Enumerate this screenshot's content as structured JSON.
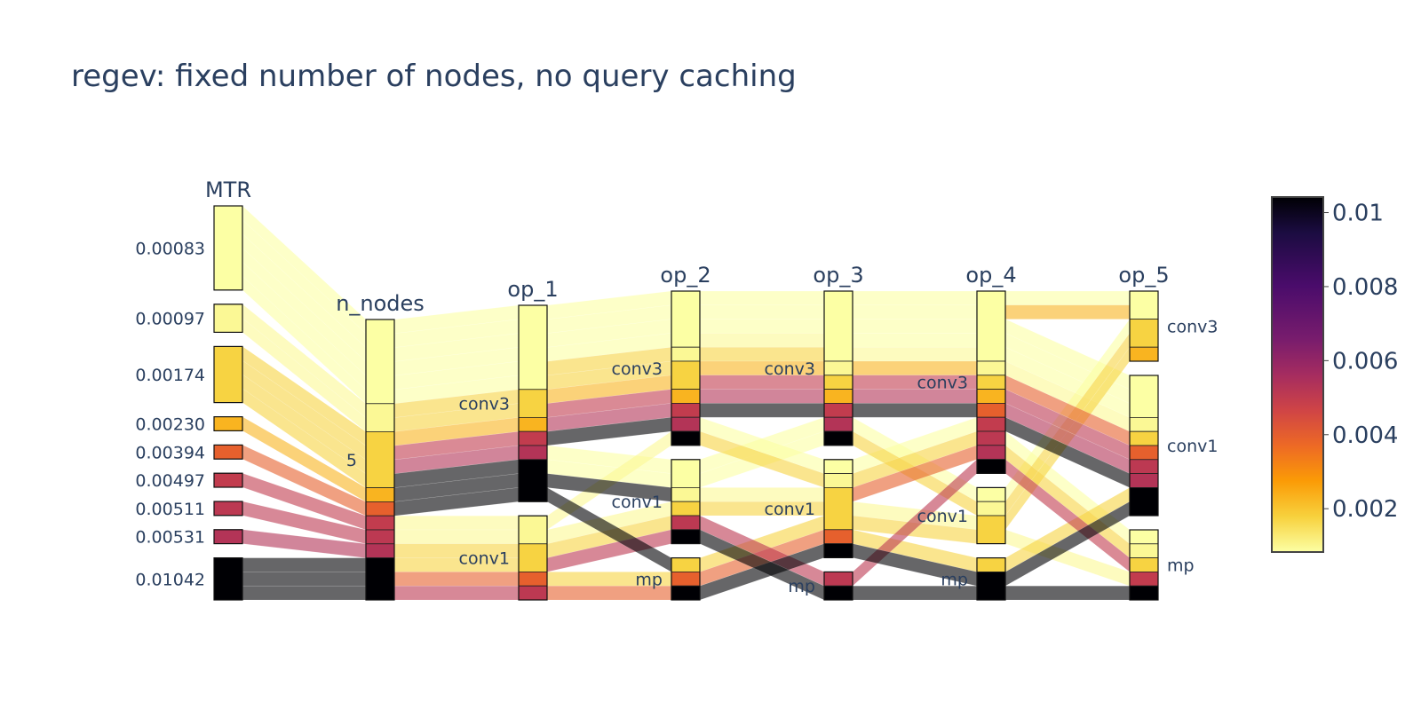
{
  "chart_data": {
    "type": "parallel_categories",
    "title": "regev: fixed number of nodes, no query caching",
    "colorscale": "Inferno (reversed)",
    "colorbar": {
      "range": [
        0.00083,
        0.01042
      ],
      "ticks": [
        "0.01",
        "0.008",
        "0.006",
        "0.004",
        "0.002"
      ],
      "tick_values": [
        0.01,
        0.008,
        0.006,
        0.004,
        0.002
      ]
    },
    "colors": {
      "text": "#2a3f5f",
      "background": "#ffffff"
    },
    "dimensions": [
      {
        "label": "MTR",
        "categories": [
          "0.00083",
          "0.00097",
          "0.00174",
          "0.00230",
          "0.00394",
          "0.00497",
          "0.00511",
          "0.00531",
          "0.01042"
        ],
        "label_side": "left"
      },
      {
        "label": "n_nodes",
        "categories": [
          "5"
        ],
        "label_side": "left"
      },
      {
        "label": "op_1",
        "categories": [
          "conv3",
          "conv1"
        ],
        "label_side": "left"
      },
      {
        "label": "op_2",
        "categories": [
          "conv3",
          "conv1",
          "mp"
        ],
        "label_side": "left"
      },
      {
        "label": "op_3",
        "categories": [
          "conv3",
          "conv1",
          "mp"
        ],
        "label_side": "left"
      },
      {
        "label": "op_4",
        "categories": [
          "conv3",
          "conv1",
          "mp"
        ],
        "label_side": "left"
      },
      {
        "label": "op_5",
        "categories": [
          "conv3",
          "conv1",
          "mp"
        ],
        "label_side": "right"
      }
    ],
    "records": [
      {
        "MTR": 0.00083,
        "ops": [
          "conv3",
          "conv3",
          "conv3",
          "conv3",
          "conv1"
        ]
      },
      {
        "MTR": 0.00083,
        "ops": [
          "conv3",
          "conv3",
          "conv3",
          "conv3",
          "conv1"
        ]
      },
      {
        "MTR": 0.00083,
        "ops": [
          "conv3",
          "conv3",
          "conv3",
          "conv3",
          "conv1"
        ]
      },
      {
        "MTR": 0.00083,
        "ops": [
          "conv3",
          "conv1",
          "conv3",
          "conv3",
          "conv3"
        ]
      },
      {
        "MTR": 0.00083,
        "ops": [
          "conv3",
          "conv1",
          "conv3",
          "conv1",
          "conv3"
        ]
      },
      {
        "MTR": 0.00083,
        "ops": [
          "conv3",
          "conv3",
          "conv1",
          "conv3",
          "mp"
        ]
      },
      {
        "MTR": 0.00097,
        "ops": [
          "conv1",
          "conv3",
          "conv3",
          "conv3",
          "conv1"
        ]
      },
      {
        "MTR": 0.00097,
        "ops": [
          "conv1",
          "conv1",
          "conv1",
          "conv1",
          "mp"
        ]
      },
      {
        "MTR": 0.00174,
        "ops": [
          "conv3",
          "conv3",
          "conv3",
          "conv1",
          "conv3"
        ]
      },
      {
        "MTR": 0.00174,
        "ops": [
          "conv3",
          "conv3",
          "conv1",
          "conv3",
          "mp"
        ]
      },
      {
        "MTR": 0.00174,
        "ops": [
          "conv1",
          "conv1",
          "conv1",
          "conv1",
          "conv3"
        ]
      },
      {
        "MTR": 0.00174,
        "ops": [
          "conv1",
          "mp",
          "conv1",
          "mp",
          "conv1"
        ]
      },
      {
        "MTR": 0.0023,
        "ops": [
          "conv3",
          "conv3",
          "conv3",
          "conv3",
          "conv3"
        ]
      },
      {
        "MTR": 0.00394,
        "ops": [
          "conv1",
          "mp",
          "conv1",
          "conv3",
          "conv1"
        ]
      },
      {
        "MTR": 0.00497,
        "ops": [
          "conv3",
          "conv3",
          "conv3",
          "conv3",
          "mp"
        ]
      },
      {
        "MTR": 0.00511,
        "ops": [
          "conv1",
          "conv1",
          "mp",
          "conv3",
          "conv1"
        ]
      },
      {
        "MTR": 0.00531,
        "ops": [
          "conv3",
          "conv3",
          "conv3",
          "conv3",
          "conv1"
        ]
      },
      {
        "MTR": 0.01042,
        "ops": [
          "conv3",
          "mp",
          "conv1",
          "mp",
          "mp"
        ]
      },
      {
        "MTR": 0.01042,
        "ops": [
          "conv3",
          "conv3",
          "conv3",
          "conv3",
          "conv1"
        ]
      },
      {
        "MTR": 0.01042,
        "ops": [
          "conv3",
          "conv1",
          "mp",
          "mp",
          "conv1"
        ]
      }
    ]
  }
}
